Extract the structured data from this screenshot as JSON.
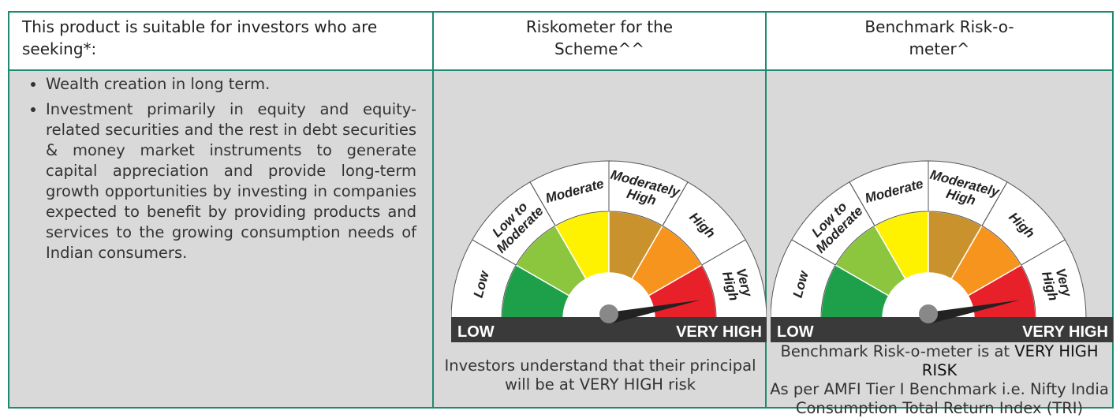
{
  "header": {
    "col1": "This product is suitable for investors who are seeking*:",
    "col2": "Riskometer for the Scheme^^",
    "col3": "Benchmark Risk-o-meter^"
  },
  "objectives": [
    "Wealth creation in long term.",
    "Investment primarily in equity and equity-related securities and the rest in debt securities & money market instruments to generate capital appreciation and provide long-term growth opportunities by investing in companies expected to benefit by providing products and services to the growing consumption needs of Indian consumers."
  ],
  "riskometer": {
    "segments": [
      [
        "Low"
      ],
      [
        "Low to",
        "Moderate"
      ],
      [
        "Moderate"
      ],
      [
        "Moderately",
        "High"
      ],
      [
        "High"
      ],
      [
        "Very",
        "High"
      ]
    ],
    "scale_low": "LOW",
    "scale_high": "VERY HIGH"
  },
  "scheme_caption": "Investors understand that their principal will be at VERY HIGH risk",
  "benchmark_caption": {
    "text": "Benchmark Risk-o-meter is at",
    "level": "VERY HIGH RISK",
    "note": "As per AMFI Tier I Benchmark i.e. Nifty India Consumption Total Return Index (TRI)"
  }
}
